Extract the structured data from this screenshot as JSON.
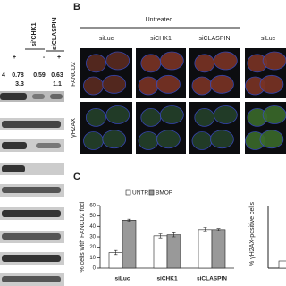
{
  "blot": {
    "lanes": [
      "si'CHK1",
      "siCLASPIN"
    ],
    "treatment": [
      "+",
      "-",
      "+"
    ],
    "ratios_1": [
      "4",
      "0.78",
      "0.59",
      "0.63"
    ],
    "ratios_2": [
      "3.3",
      "1.1"
    ]
  },
  "panel_b": {
    "label": "B",
    "group": "Untreated",
    "columns": [
      "siLuc",
      "siCHK1",
      "siCLASPIN",
      "siLuc"
    ],
    "rows": [
      "FANCD2",
      "γH2AX"
    ]
  },
  "chart_data": {
    "type": "bar",
    "panel_label": "C",
    "y_label": "% cells with FANCD2 foci",
    "categories": [
      "siLuc",
      "siCHK1",
      "siCLASPIN"
    ],
    "series": [
      {
        "name": "UNTR",
        "color": "#ffffff",
        "values": [
          15,
          31,
          37
        ],
        "errors": [
          2,
          2,
          2
        ]
      },
      {
        "name": "BMOP",
        "color": "#999999",
        "values": [
          46,
          32,
          37
        ],
        "errors": [
          1,
          2,
          1
        ]
      }
    ],
    "ylim": [
      0,
      60
    ],
    "yticks": [
      0,
      10,
      20,
      30,
      40,
      50,
      60
    ]
  },
  "panel_right": {
    "y_label": "% γH2AX-positive cells"
  }
}
